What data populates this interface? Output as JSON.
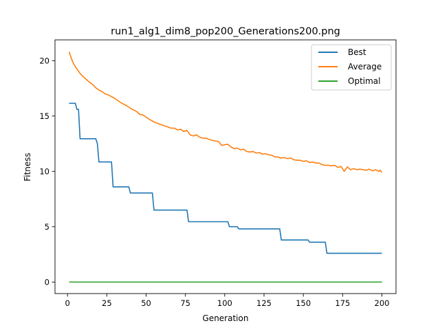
{
  "chart_data": {
    "type": "line",
    "title": "run1_alg1_dim8_pop200_Generations200.png",
    "xlabel": "Generation",
    "ylabel": "Fitness",
    "xlim": [
      -7.95,
      208.95
    ],
    "ylim": [
      -1.04,
      21.88
    ],
    "xticks": [
      0,
      25,
      50,
      75,
      100,
      125,
      150,
      175,
      200
    ],
    "yticks": [
      0,
      5,
      10,
      15,
      20
    ],
    "grid": false,
    "legend_position": "top-right",
    "series": [
      {
        "name": "Best",
        "color": "#1f77b4",
        "points": [
          [
            1,
            16.15
          ],
          [
            5,
            16.15
          ],
          [
            6,
            15.6
          ],
          [
            7,
            15.6
          ],
          [
            8,
            12.95
          ],
          [
            18,
            12.95
          ],
          [
            19,
            12.5
          ],
          [
            20,
            10.85
          ],
          [
            28,
            10.85
          ],
          [
            29,
            8.6
          ],
          [
            39,
            8.6
          ],
          [
            40,
            8.05
          ],
          [
            54,
            8.05
          ],
          [
            55,
            6.5
          ],
          [
            76,
            6.5
          ],
          [
            77,
            5.45
          ],
          [
            102,
            5.45
          ],
          [
            103,
            5.0
          ],
          [
            108,
            5.0
          ],
          [
            109,
            4.8
          ],
          [
            135,
            4.8
          ],
          [
            136,
            3.8
          ],
          [
            153,
            3.8
          ],
          [
            154,
            3.6
          ],
          [
            164,
            3.6
          ],
          [
            165,
            2.6
          ],
          [
            200,
            2.6
          ]
        ]
      },
      {
        "name": "Average",
        "color": "#ff7f0e",
        "points": [
          [
            1,
            20.8
          ],
          [
            2,
            20.4
          ],
          [
            3,
            20.0
          ],
          [
            4,
            19.7
          ],
          [
            5,
            19.45
          ],
          [
            6,
            19.25
          ],
          [
            7,
            19.05
          ],
          [
            8,
            18.85
          ],
          [
            10,
            18.55
          ],
          [
            12,
            18.3
          ],
          [
            14,
            18.05
          ],
          [
            16,
            17.85
          ],
          [
            18,
            17.55
          ],
          [
            20,
            17.35
          ],
          [
            22,
            17.2
          ],
          [
            24,
            17.0
          ],
          [
            26,
            16.9
          ],
          [
            28,
            16.75
          ],
          [
            30,
            16.6
          ],
          [
            32,
            16.4
          ],
          [
            34,
            16.2
          ],
          [
            36,
            16.05
          ],
          [
            38,
            15.9
          ],
          [
            40,
            15.7
          ],
          [
            42,
            15.55
          ],
          [
            44,
            15.4
          ],
          [
            46,
            15.15
          ],
          [
            48,
            15.1
          ],
          [
            50,
            14.9
          ],
          [
            52,
            14.7
          ],
          [
            54,
            14.55
          ],
          [
            56,
            14.4
          ],
          [
            58,
            14.3
          ],
          [
            60,
            14.2
          ],
          [
            62,
            14.1
          ],
          [
            64,
            14.0
          ],
          [
            66,
            13.9
          ],
          [
            68,
            13.9
          ],
          [
            70,
            13.75
          ],
          [
            72,
            13.8
          ],
          [
            74,
            13.6
          ],
          [
            76,
            13.7
          ],
          [
            78,
            13.3
          ],
          [
            80,
            13.2
          ],
          [
            82,
            13.3
          ],
          [
            84,
            13.1
          ],
          [
            86,
            13.0
          ],
          [
            88,
            13.0
          ],
          [
            90,
            12.9
          ],
          [
            92,
            12.8
          ],
          [
            94,
            12.75
          ],
          [
            96,
            12.7
          ],
          [
            98,
            12.35
          ],
          [
            100,
            12.4
          ],
          [
            102,
            12.45
          ],
          [
            104,
            12.2
          ],
          [
            106,
            12.05
          ],
          [
            108,
            12.1
          ],
          [
            110,
            11.95
          ],
          [
            112,
            12.0
          ],
          [
            114,
            11.8
          ],
          [
            116,
            11.75
          ],
          [
            118,
            11.8
          ],
          [
            120,
            11.65
          ],
          [
            122,
            11.7
          ],
          [
            124,
            11.55
          ],
          [
            126,
            11.6
          ],
          [
            128,
            11.5
          ],
          [
            130,
            11.45
          ],
          [
            132,
            11.3
          ],
          [
            134,
            11.3
          ],
          [
            136,
            11.2
          ],
          [
            138,
            11.25
          ],
          [
            140,
            11.15
          ],
          [
            142,
            11.2
          ],
          [
            144,
            11.05
          ],
          [
            146,
            11.0
          ],
          [
            148,
            11.0
          ],
          [
            150,
            10.9
          ],
          [
            152,
            10.95
          ],
          [
            154,
            10.8
          ],
          [
            156,
            10.85
          ],
          [
            158,
            10.75
          ],
          [
            160,
            10.75
          ],
          [
            162,
            10.6
          ],
          [
            164,
            10.55
          ],
          [
            166,
            10.55
          ],
          [
            168,
            10.5
          ],
          [
            170,
            10.55
          ],
          [
            172,
            10.35
          ],
          [
            174,
            10.45
          ],
          [
            176,
            10.0
          ],
          [
            178,
            10.4
          ],
          [
            180,
            10.15
          ],
          [
            182,
            10.25
          ],
          [
            184,
            10.15
          ],
          [
            186,
            10.2
          ],
          [
            188,
            10.15
          ],
          [
            190,
            10.1
          ],
          [
            192,
            10.2
          ],
          [
            194,
            10.05
          ],
          [
            196,
            10.15
          ],
          [
            198,
            10.0
          ],
          [
            199,
            10.1
          ],
          [
            200,
            9.9
          ]
        ]
      },
      {
        "name": "Optimal",
        "color": "#2ca02c",
        "points": [
          [
            1,
            0
          ],
          [
            200,
            0
          ]
        ]
      }
    ]
  }
}
